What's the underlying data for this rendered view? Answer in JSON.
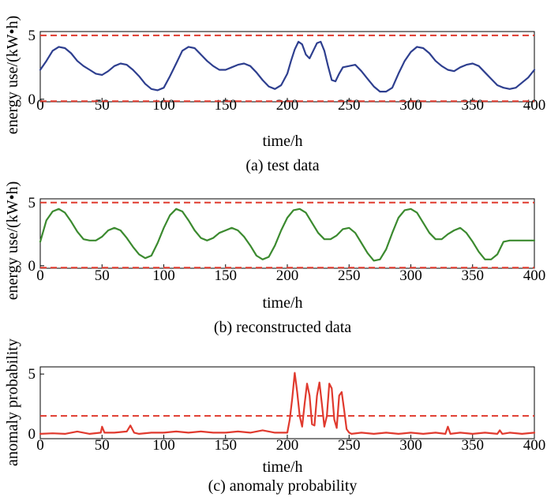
{
  "chart_data": [
    {
      "id": "a",
      "type": "line",
      "caption": "(a) test data",
      "xlabel": "time/h",
      "ylabel": "energy use/(kW•h)",
      "xlim": [
        0,
        400
      ],
      "ylim": [
        -0.2,
        5.3
      ],
      "xticks": [
        0,
        50,
        100,
        150,
        200,
        250,
        300,
        350,
        400
      ],
      "yticks": [
        0,
        5
      ],
      "threshold_lines": [
        5,
        -0.15
      ],
      "series": [
        {
          "name": "test data",
          "color": "#2e3f8f",
          "x": [
            0,
            5,
            10,
            15,
            20,
            25,
            30,
            35,
            40,
            45,
            50,
            55,
            60,
            65,
            70,
            75,
            80,
            85,
            90,
            95,
            100,
            105,
            110,
            115,
            120,
            125,
            130,
            135,
            140,
            145,
            150,
            155,
            160,
            165,
            170,
            175,
            180,
            185,
            190,
            195,
            200,
            203,
            206,
            209,
            212,
            215,
            218,
            221,
            224,
            227,
            230,
            233,
            236,
            239,
            242,
            245,
            250,
            255,
            260,
            265,
            270,
            275,
            280,
            285,
            290,
            295,
            300,
            305,
            310,
            315,
            320,
            325,
            330,
            335,
            340,
            345,
            350,
            355,
            360,
            365,
            370,
            375,
            380,
            385,
            390,
            395,
            400
          ],
          "y": [
            2.3,
            3.0,
            3.8,
            4.1,
            4.0,
            3.6,
            3.0,
            2.6,
            2.3,
            2.0,
            1.9,
            2.2,
            2.6,
            2.8,
            2.7,
            2.3,
            1.8,
            1.2,
            0.8,
            0.7,
            0.9,
            1.8,
            2.8,
            3.8,
            4.1,
            4.0,
            3.5,
            3.0,
            2.6,
            2.3,
            2.3,
            2.5,
            2.7,
            2.8,
            2.6,
            2.1,
            1.5,
            1.0,
            0.8,
            1.1,
            2.0,
            3.0,
            3.9,
            4.5,
            4.3,
            3.5,
            3.2,
            3.8,
            4.4,
            4.5,
            3.8,
            2.6,
            1.5,
            1.4,
            2.0,
            2.5,
            2.6,
            2.7,
            2.2,
            1.6,
            1.0,
            0.6,
            0.6,
            0.9,
            2.0,
            3.0,
            3.7,
            4.1,
            4.0,
            3.6,
            3.0,
            2.6,
            2.3,
            2.2,
            2.5,
            2.7,
            2.8,
            2.6,
            2.1,
            1.6,
            1.1,
            0.9,
            0.8,
            0.9,
            1.3,
            1.7,
            2.3
          ]
        }
      ]
    },
    {
      "id": "b",
      "type": "line",
      "caption": "(b) reconstructed data",
      "xlabel": "time/h",
      "ylabel": "energy use/(kW•h)",
      "xlim": [
        0,
        400
      ],
      "ylim": [
        -0.2,
        5.3
      ],
      "xticks": [
        0,
        50,
        100,
        150,
        200,
        250,
        300,
        350,
        400
      ],
      "yticks": [
        0,
        5
      ],
      "threshold_lines": [
        5,
        -0.15
      ],
      "series": [
        {
          "name": "reconstructed data",
          "color": "#3b8a2f",
          "x": [
            0,
            5,
            10,
            15,
            20,
            25,
            30,
            35,
            40,
            45,
            50,
            55,
            60,
            65,
            70,
            75,
            80,
            85,
            90,
            95,
            100,
            105,
            110,
            115,
            120,
            125,
            130,
            135,
            140,
            145,
            150,
            155,
            160,
            165,
            170,
            175,
            180,
            185,
            190,
            195,
            200,
            205,
            210,
            215,
            220,
            225,
            230,
            235,
            240,
            245,
            250,
            255,
            260,
            265,
            270,
            275,
            280,
            285,
            290,
            295,
            300,
            305,
            310,
            315,
            320,
            325,
            330,
            335,
            340,
            345,
            350,
            355,
            360,
            365,
            370,
            375,
            380,
            385,
            390,
            395,
            400
          ],
          "y": [
            1.9,
            3.6,
            4.3,
            4.5,
            4.2,
            3.5,
            2.7,
            2.1,
            2.0,
            2.0,
            2.3,
            2.8,
            3.0,
            2.8,
            2.2,
            1.5,
            0.9,
            0.6,
            0.8,
            1.8,
            3.0,
            4.0,
            4.5,
            4.3,
            3.6,
            2.8,
            2.2,
            2.0,
            2.2,
            2.6,
            2.8,
            3.0,
            2.8,
            2.3,
            1.6,
            0.8,
            0.5,
            0.7,
            1.6,
            2.8,
            3.8,
            4.4,
            4.5,
            4.2,
            3.4,
            2.6,
            2.1,
            2.1,
            2.4,
            2.9,
            3.0,
            2.6,
            1.8,
            1.0,
            0.4,
            0.5,
            1.3,
            2.6,
            3.8,
            4.4,
            4.5,
            4.2,
            3.4,
            2.6,
            2.1,
            2.1,
            2.5,
            2.8,
            3.0,
            2.6,
            1.9,
            1.1,
            0.5,
            0.5,
            0.9,
            1.9,
            2.0,
            2.0,
            2.0,
            2.0,
            2.0
          ]
        }
      ]
    },
    {
      "id": "c",
      "type": "line",
      "caption": "(c) anomaly probability",
      "xlabel": "time/h",
      "ylabel": "anomaly probability",
      "xlim": [
        0,
        400
      ],
      "ylim": [
        -0.4,
        5.6
      ],
      "xticks": [
        0,
        50,
        100,
        150,
        200,
        250,
        300,
        350,
        400
      ],
      "yticks": [
        0,
        5
      ],
      "threshold_lines": [
        1.5
      ],
      "series": [
        {
          "name": "anomaly probability",
          "color": "#e03a2e",
          "x": [
            0,
            10,
            20,
            30,
            40,
            49,
            50,
            52,
            60,
            70,
            73,
            76,
            80,
            90,
            100,
            110,
            120,
            130,
            140,
            150,
            160,
            170,
            180,
            190,
            200,
            202,
            204,
            206,
            208,
            210,
            212,
            214,
            216,
            218,
            220,
            222,
            224,
            226,
            228,
            230,
            232,
            234,
            236,
            238,
            240,
            242,
            244,
            246,
            248,
            250,
            252,
            260,
            270,
            280,
            290,
            300,
            310,
            320,
            328,
            330,
            332,
            340,
            350,
            360,
            370,
            372,
            374,
            380,
            390,
            400
          ],
          "y": [
            0.0,
            0.05,
            0.0,
            0.2,
            0.0,
            0.1,
            0.6,
            0.1,
            0.1,
            0.2,
            0.7,
            0.1,
            0.0,
            0.1,
            0.1,
            0.2,
            0.1,
            0.2,
            0.1,
            0.1,
            0.2,
            0.1,
            0.3,
            0.1,
            0.1,
            1.2,
            3.0,
            5.1,
            3.5,
            1.5,
            0.6,
            2.5,
            4.2,
            3.2,
            0.8,
            0.7,
            3.2,
            4.3,
            2.5,
            0.6,
            1.5,
            4.2,
            3.8,
            1.2,
            0.5,
            3.2,
            3.5,
            2.0,
            0.4,
            0.1,
            0.0,
            0.1,
            0.0,
            0.1,
            0.0,
            0.1,
            0.0,
            0.1,
            0.0,
            0.6,
            0.0,
            0.1,
            0.0,
            0.1,
            0.0,
            0.3,
            0.0,
            0.1,
            0.0,
            0.1
          ]
        }
      ]
    }
  ]
}
